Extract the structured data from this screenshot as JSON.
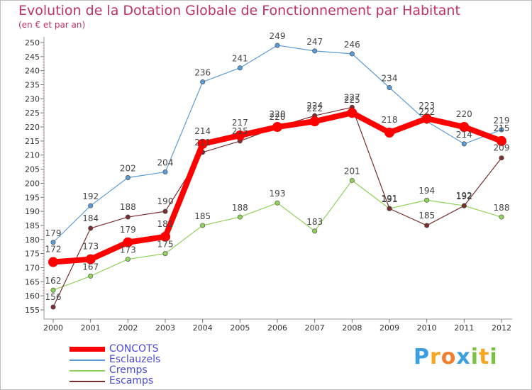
{
  "chart_data": {
    "type": "line",
    "title": "Evolution de la Dotation Globale de Fonctionnement par Habitant",
    "subtitle": "(en € et par an)",
    "x": [
      "2000",
      "2001",
      "2002",
      "2003",
      "2004",
      "2005",
      "2006",
      "2007",
      "2008",
      "2009",
      "2010",
      "2011",
      "2012"
    ],
    "ylim": [
      155,
      250
    ],
    "yticks": [
      155,
      160,
      165,
      170,
      175,
      180,
      185,
      190,
      195,
      200,
      205,
      210,
      215,
      220,
      225,
      230,
      235,
      240,
      245,
      250
    ],
    "grid": false,
    "legend_position": "bottom-left",
    "series": [
      {
        "name": "CONCOTS",
        "color": "#ff0000",
        "values": [
          172,
          173,
          179,
          181,
          214,
          217,
          220,
          222,
          225,
          218,
          223,
          220,
          215
        ]
      },
      {
        "name": "Esclauzels",
        "color": "#5b9bd5",
        "values": [
          179,
          192,
          202,
          204,
          236,
          241,
          249,
          247,
          246,
          234,
          222,
          214,
          219
        ]
      },
      {
        "name": "Cremps",
        "color": "#8fd15a",
        "values": [
          162,
          167,
          173,
          175,
          185,
          188,
          193,
          183,
          201,
          191,
          194,
          192,
          188
        ]
      },
      {
        "name": "Escamps",
        "color": "#7a2e2e",
        "values": [
          156,
          184,
          188,
          190,
          211,
          215,
          220,
          224,
          227,
          191,
          185,
          192,
          209
        ]
      }
    ]
  },
  "logo": {
    "text": "Proxiti",
    "letters": [
      "P",
      "r",
      "o",
      "x",
      "i",
      "t",
      "i"
    ],
    "colors": [
      "#3aa0e0",
      "#f5a623",
      "#f08030",
      "#3aa0e0",
      "#7cc242",
      "#f5a623",
      "#7cc242"
    ]
  }
}
